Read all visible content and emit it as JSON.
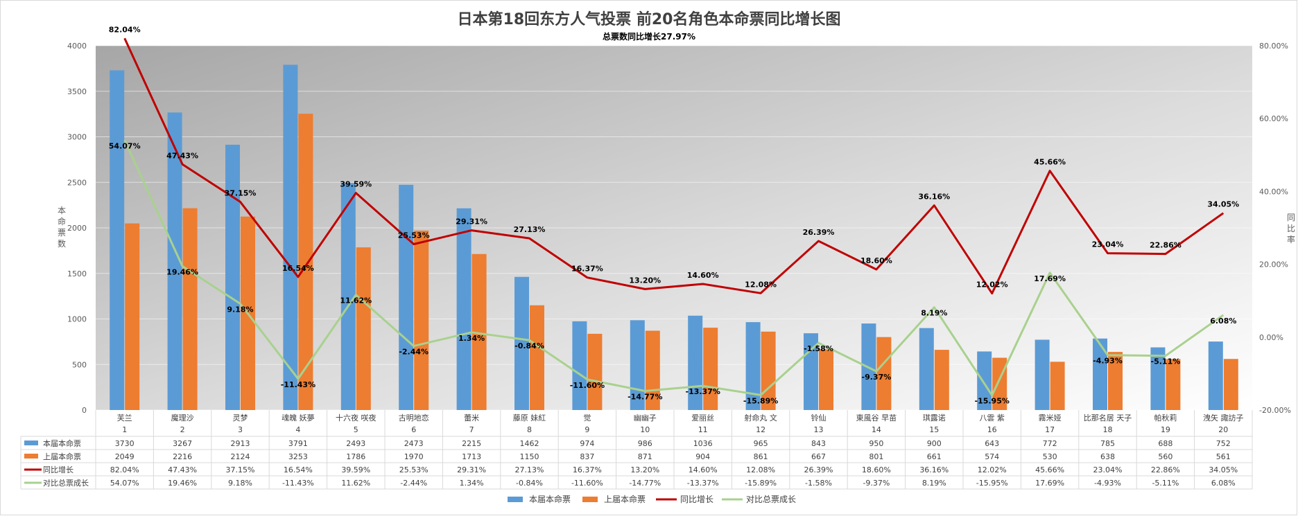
{
  "chart_data": {
    "type": "bar",
    "title": "日本第18回东方人气投票 前20名角色本命票同比增长图",
    "subtitle": "总票数同比增长27.97%",
    "ylabel": "本命票数",
    "y2label": "同比率",
    "ylim": [
      0,
      4000
    ],
    "y2lim": [
      -0.2,
      0.8
    ],
    "yticks": [
      "0",
      "500",
      "1000",
      "1500",
      "2000",
      "2500",
      "3000",
      "3500",
      "4000"
    ],
    "y2ticks": [
      "-20.00%",
      "0.00%",
      "20.00%",
      "40.00%",
      "60.00%",
      "80.00%"
    ],
    "names": [
      "芙兰",
      "魔理沙",
      "灵梦",
      "魂魄 妖夢",
      "十六夜 咲夜",
      "古明地恋",
      "蕾米",
      "藤原 妹紅",
      "觉",
      "幽幽子",
      "爱丽丝",
      "射命丸 文",
      "铃仙",
      "東風谷 早苗",
      "琪露诺",
      "八雲 紫",
      "霧米娅",
      "比那名居 天子",
      "帕秋莉",
      "洩矢 諏訪子"
    ],
    "ranks": [
      "1",
      "2",
      "3",
      "4",
      "5",
      "6",
      "7",
      "8",
      "9",
      "10",
      "11",
      "12",
      "13",
      "14",
      "15",
      "16",
      "17",
      "18",
      "19",
      "20"
    ],
    "series": [
      {
        "name": "本届本命票",
        "kind": "bar",
        "color": "#5b9bd5",
        "values": [
          3730,
          3267,
          2913,
          3791,
          2493,
          2473,
          2215,
          1462,
          974,
          986,
          1036,
          965,
          843,
          950,
          900,
          643,
          772,
          785,
          688,
          752
        ]
      },
      {
        "name": "上届本命票",
        "kind": "bar",
        "color": "#ed7d31",
        "values": [
          2049,
          2216,
          2124,
          3253,
          1786,
          1970,
          1713,
          1150,
          837,
          871,
          904,
          861,
          667,
          801,
          661,
          574,
          530,
          638,
          560,
          561
        ]
      },
      {
        "name": "同比增长",
        "kind": "line",
        "color": "#c00000",
        "values": [
          0.8204,
          0.4743,
          0.3715,
          0.1654,
          0.3959,
          0.2553,
          0.2931,
          0.2713,
          0.1637,
          0.132,
          0.146,
          0.1208,
          0.2639,
          0.186,
          0.3616,
          0.1202,
          0.4566,
          0.2304,
          0.2286,
          0.3405
        ],
        "labels": [
          "82.04%",
          "47.43%",
          "37.15%",
          "16.54%",
          "39.59%",
          "25.53%",
          "29.31%",
          "27.13%",
          "16.37%",
          "13.20%",
          "14.60%",
          "12.08%",
          "26.39%",
          "18.60%",
          "36.16%",
          "12.02%",
          "45.66%",
          "23.04%",
          "22.86%",
          "34.05%"
        ]
      },
      {
        "name": "对比总票成长",
        "kind": "line",
        "color": "#a9d18e",
        "values": [
          0.5407,
          0.1946,
          0.0918,
          -0.1143,
          0.1162,
          -0.0244,
          0.0134,
          -0.0084,
          -0.116,
          -0.1477,
          -0.1337,
          -0.1589,
          -0.0158,
          -0.0937,
          0.0819,
          -0.1595,
          0.1769,
          -0.0493,
          -0.0511,
          0.0608
        ],
        "labels": [
          "54.07%",
          "19.46%",
          "9.18%",
          "-11.43%",
          "11.62%",
          "-2.44%",
          "1.34%",
          "-0.84%",
          "-11.60%",
          "-14.77%",
          "-13.37%",
          "-15.89%",
          "-1.58%",
          "-9.37%",
          "8.19%",
          "-15.95%",
          "17.69%",
          "-4.93%",
          "-5.11%",
          "6.08%"
        ]
      }
    ],
    "table_rows": [
      {
        "name": "本届本命票",
        "cells": [
          "3730",
          "3267",
          "2913",
          "3791",
          "2493",
          "2473",
          "2215",
          "1462",
          "974",
          "986",
          "1036",
          "965",
          "843",
          "950",
          "900",
          "643",
          "772",
          "785",
          "688",
          "752"
        ]
      },
      {
        "name": "上届本命票",
        "cells": [
          "2049",
          "2216",
          "2124",
          "3253",
          "1786",
          "1970",
          "1713",
          "1150",
          "837",
          "871",
          "904",
          "861",
          "667",
          "801",
          "661",
          "574",
          "530",
          "638",
          "560",
          "561"
        ]
      },
      {
        "name": "同比增长",
        "cells": [
          "82.04%",
          "47.43%",
          "37.15%",
          "16.54%",
          "39.59%",
          "25.53%",
          "29.31%",
          "27.13%",
          "16.37%",
          "13.20%",
          "14.60%",
          "12.08%",
          "26.39%",
          "18.60%",
          "36.16%",
          "12.02%",
          "45.66%",
          "23.04%",
          "22.86%",
          "34.05%"
        ]
      },
      {
        "name": "对比总票成长",
        "cells": [
          "54.07%",
          "19.46%",
          "9.18%",
          "-11.43%",
          "11.62%",
          "-2.44%",
          "1.34%",
          "-0.84%",
          "-11.60%",
          "-14.77%",
          "-13.37%",
          "-15.89%",
          "-1.58%",
          "-9.37%",
          "8.19%",
          "-15.95%",
          "17.69%",
          "-4.93%",
          "-5.11%",
          "6.08%"
        ]
      }
    ],
    "legend": [
      "本届本命票",
      "上届本命票",
      "同比增长",
      "对比总票成长"
    ],
    "legend_position": "bottom"
  }
}
